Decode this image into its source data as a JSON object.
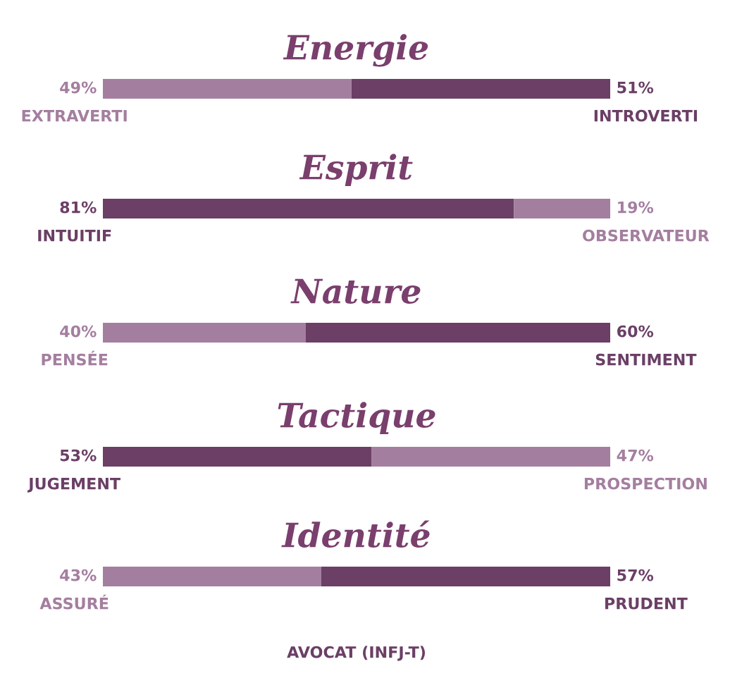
{
  "chart_data": [
    {
      "type": "bar",
      "title": "Energie",
      "orientation": "horizontal",
      "stacked": true,
      "categories": [
        null
      ],
      "xlim": [
        0,
        100
      ],
      "tick_labels": false,
      "series": [
        {
          "name": "EXTRAVERTI",
          "color": "#a47e9f",
          "values": [
            49
          ],
          "value_labels": [
            "49%"
          ]
        },
        {
          "name": "INTROVERTI",
          "color": "#6b3f66",
          "values": [
            51
          ],
          "value_labels": [
            "51%"
          ]
        }
      ]
    },
    {
      "type": "bar",
      "title": "Esprit",
      "orientation": "horizontal",
      "stacked": true,
      "categories": [
        null
      ],
      "xlim": [
        0,
        100
      ],
      "tick_labels": false,
      "series": [
        {
          "name": "INTUITIF",
          "color": "#6b3f66",
          "values": [
            81
          ],
          "value_labels": [
            "81%"
          ]
        },
        {
          "name": "OBSERVATEUR",
          "color": "#a47e9f",
          "values": [
            19
          ],
          "value_labels": [
            "19%"
          ]
        }
      ]
    },
    {
      "type": "bar",
      "title": "Nature",
      "orientation": "horizontal",
      "stacked": true,
      "categories": [
        null
      ],
      "xlim": [
        0,
        100
      ],
      "tick_labels": false,
      "series": [
        {
          "name": "PENSÉE",
          "color": "#a47e9f",
          "values": [
            40
          ],
          "value_labels": [
            "40%"
          ]
        },
        {
          "name": "SENTIMENT",
          "color": "#6b3f66",
          "values": [
            60
          ],
          "value_labels": [
            "60%"
          ]
        }
      ]
    },
    {
      "type": "bar",
      "title": "Tactique",
      "orientation": "horizontal",
      "stacked": true,
      "categories": [
        null
      ],
      "xlim": [
        0,
        100
      ],
      "tick_labels": false,
      "series": [
        {
          "name": "JUGEMENT",
          "color": "#6b3f66",
          "values": [
            53
          ],
          "value_labels": [
            "53%"
          ]
        },
        {
          "name": "PROSPECTION",
          "color": "#a47e9f",
          "values": [
            47
          ],
          "value_labels": [
            "47%"
          ]
        }
      ]
    },
    {
      "type": "bar",
      "title": "Identité",
      "orientation": "horizontal",
      "stacked": true,
      "categories": [
        null
      ],
      "xlim": [
        0,
        100
      ],
      "tick_labels": false,
      "series": [
        {
          "name": "ASSURÉ",
          "color": "#a47e9f",
          "values": [
            43
          ],
          "value_labels": [
            "43%"
          ]
        },
        {
          "name": "PRUDENT",
          "color": "#6b3f66",
          "values": [
            57
          ],
          "value_labels": [
            "57%"
          ]
        }
      ],
      "annotations": [
        "AVOCAT (INFJ-T)"
      ]
    }
  ]
}
